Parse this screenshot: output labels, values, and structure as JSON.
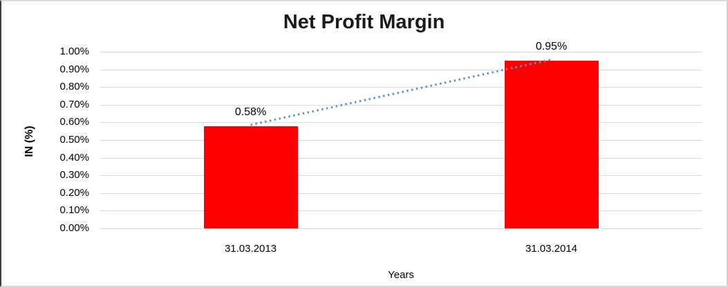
{
  "chart_data": {
    "type": "bar",
    "title": "Net Profit Margin",
    "xlabel": "Years",
    "ylabel": "IN (%)",
    "categories": [
      "31.03.2013",
      "31.03.2014"
    ],
    "series": [
      {
        "name": "Net Profit Margin",
        "values": [
          0.58,
          0.95
        ]
      }
    ],
    "data_labels": [
      "0.58%",
      "0.95%"
    ],
    "y_ticks": [
      "1.00%",
      "0.90%",
      "0.80%",
      "0.70%",
      "0.60%",
      "0.50%",
      "0.40%",
      "0.30%",
      "0.20%",
      "0.10%",
      "0.00%"
    ],
    "ylim": [
      0,
      1.0
    ],
    "grid": true,
    "legend": "none",
    "bar_color": "#ff0000",
    "trendline": {
      "style": "dotted",
      "color": "#5b8fd4"
    },
    "gridline_color": "#d9d9d9"
  }
}
